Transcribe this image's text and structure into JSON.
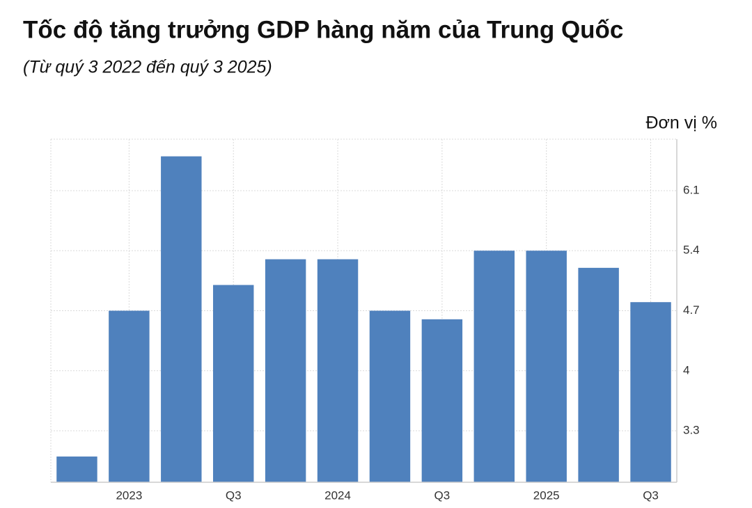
{
  "chart_data": {
    "type": "bar",
    "title": "Tốc độ tăng trưởng GDP hàng năm của Trung Quốc",
    "subtitle": "(Từ quý 3 2022 đến quý 3 2025)",
    "y_axis_label": "Đơn vị %",
    "categories": [
      null,
      "2023",
      null,
      "Q3",
      null,
      "2024",
      null,
      "Q3",
      null,
      "2025",
      null,
      "Q3"
    ],
    "values": [
      3.0,
      4.7,
      6.5,
      5.0,
      5.3,
      5.3,
      4.7,
      4.6,
      5.4,
      5.4,
      5.2,
      4.8
    ],
    "color": "#4f81bd",
    "ylim": [
      2.7,
      6.7
    ],
    "yticks": [
      3.3,
      4.0,
      4.7,
      5.4,
      6.1
    ],
    "y_axis_side": "right",
    "grid": true
  }
}
